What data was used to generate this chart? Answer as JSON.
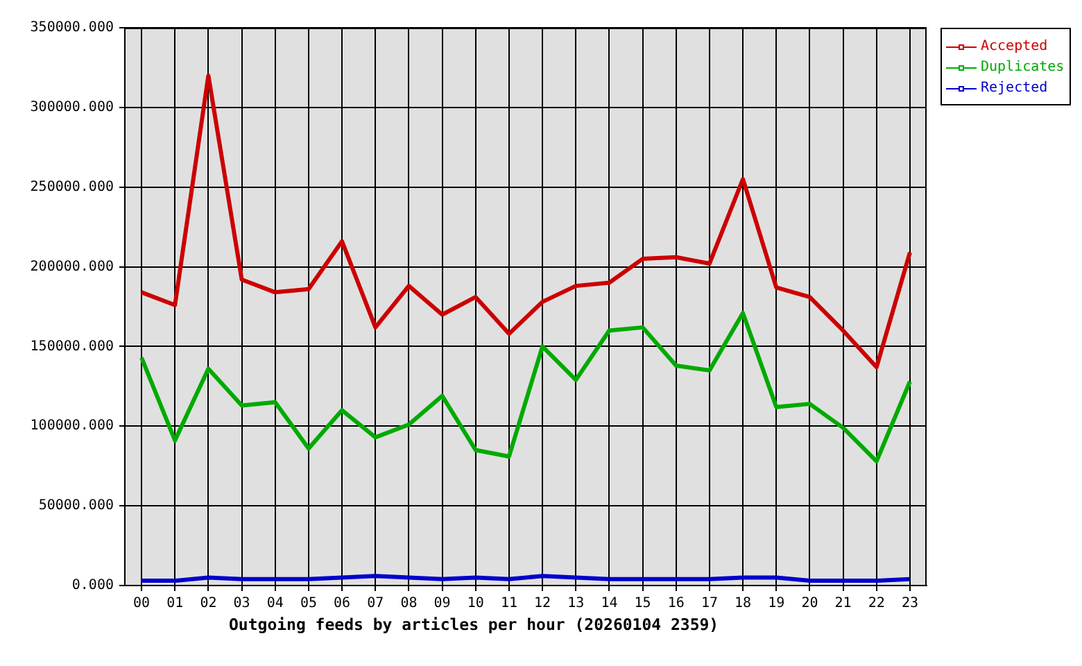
{
  "chart_data": {
    "type": "line",
    "xlabel": "Outgoing feeds by articles per hour (20260104 2359)",
    "categories": [
      "00",
      "01",
      "02",
      "03",
      "04",
      "05",
      "06",
      "07",
      "08",
      "09",
      "10",
      "11",
      "12",
      "13",
      "14",
      "15",
      "16",
      "17",
      "18",
      "19",
      "20",
      "21",
      "22",
      "23"
    ],
    "series": [
      {
        "name": "Accepted",
        "color": "#cc0000",
        "values": [
          184000,
          176000,
          320000,
          192000,
          184000,
          186000,
          216000,
          162000,
          188000,
          170000,
          181000,
          158000,
          178000,
          188000,
          190000,
          205000,
          206000,
          202000,
          255000,
          187000,
          181000,
          160000,
          137000,
          209000
        ]
      },
      {
        "name": "Duplicates",
        "color": "#00aa00",
        "values": [
          143000,
          91000,
          136000,
          113000,
          115000,
          86000,
          110000,
          93000,
          101000,
          119000,
          85000,
          81000,
          150000,
          129000,
          160000,
          162000,
          138000,
          135000,
          171000,
          112000,
          114000,
          99000,
          78000,
          128000
        ]
      },
      {
        "name": "Rejected",
        "color": "#0000cc",
        "values": [
          3000,
          3000,
          5000,
          4000,
          4000,
          4000,
          5000,
          6000,
          5000,
          4000,
          5000,
          4000,
          6000,
          5000,
          4000,
          4000,
          4000,
          4000,
          5000,
          5000,
          3000,
          3000,
          3000,
          4000
        ]
      }
    ],
    "ylim": [
      0,
      350000
    ],
    "yticks": [
      {
        "value": 0,
        "label": "0.000"
      },
      {
        "value": 50000,
        "label": "50000.000"
      },
      {
        "value": 100000,
        "label": "100000.000"
      },
      {
        "value": 150000,
        "label": "150000.000"
      },
      {
        "value": 200000,
        "label": "200000.000"
      },
      {
        "value": 250000,
        "label": "250000.000"
      },
      {
        "value": 300000,
        "label": "300000.000"
      },
      {
        "value": 350000,
        "label": "350000.000"
      }
    ],
    "grid": true,
    "legend": "top right"
  }
}
